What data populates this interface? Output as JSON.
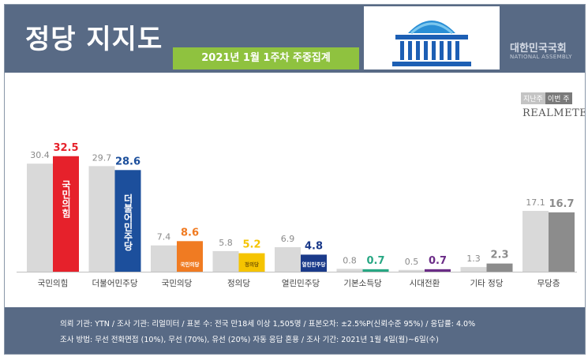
{
  "header": {
    "title": "정당 지지도",
    "subtitle": "2021년 1월 1주차 주중집계",
    "assembly_label": "대한민국국회",
    "assembly_label_en": "NATIONAL ASSEMBLY"
  },
  "legend": {
    "prev": "지난주",
    "curr": "이번 주"
  },
  "brand": "REALMETER",
  "colors": {
    "prev": "#d9d9d9",
    "curr": [
      "#e6212b",
      "#1c4f9c",
      "#f07b22",
      "#f5c400",
      "#1a3a8a",
      "#27a783",
      "#6b2c87",
      "#8c8c8c",
      "#8c8c8c"
    ]
  },
  "chart_data": {
    "type": "bar",
    "categories": [
      "국민의힘",
      "더불어민주당",
      "국민의당",
      "정의당",
      "열린민주당",
      "기본소득당",
      "시대전환",
      "기타 정당",
      "무당층"
    ],
    "series": [
      {
        "name": "지난주",
        "values": [
          30.4,
          29.7,
          7.4,
          5.8,
          6.9,
          0.8,
          0.5,
          1.3,
          17.1
        ]
      },
      {
        "name": "이번 주",
        "values": [
          32.5,
          28.6,
          8.6,
          5.2,
          4.8,
          0.7,
          0.7,
          2.3,
          16.7
        ]
      }
    ],
    "bar_labels": [
      "국민의힘",
      "더불어민주당",
      "국민의당",
      "정의당",
      "열린민주당"
    ],
    "legend_position": "top-right",
    "grid": false
  },
  "footer": {
    "line1": "의뢰 기관: YTN / 조사 기관: 리얼미터 / 표본 수: 전국 만18세 이상 1,505명 / 표본오차: ±2.5%P(신뢰수준 95%) / 응답률: 4.0%",
    "line2": "조사 방법: 무선 전화면접 (10%), 무선 (70%), 유선 (20%) 자동 응답 혼용 / 조사 기간: 2021년 1월 4일(월)~6일(수)"
  }
}
